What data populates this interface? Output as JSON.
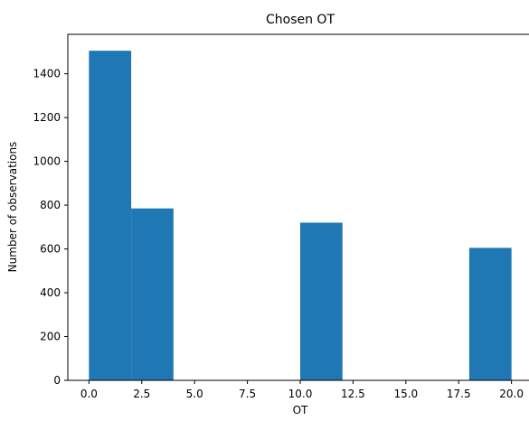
{
  "chart_data": {
    "type": "bar",
    "title": "Chosen OT",
    "xlabel": "OT",
    "ylabel": "Number of observations",
    "xlim": [
      -1,
      21
    ],
    "ylim": [
      0,
      1580
    ],
    "xticks": [
      "0.0",
      "2.5",
      "5.0",
      "7.5",
      "10.0",
      "12.5",
      "15.0",
      "17.5",
      "20.0"
    ],
    "xtick_values": [
      0,
      2.5,
      5,
      7.5,
      10,
      12.5,
      15,
      17.5,
      20
    ],
    "yticks": [
      "0",
      "200",
      "400",
      "600",
      "800",
      "1000",
      "1200",
      "1400"
    ],
    "ytick_values": [
      0,
      200,
      400,
      600,
      800,
      1000,
      1200,
      1400
    ],
    "bins": [
      [
        0,
        2
      ],
      [
        2,
        4
      ],
      [
        4,
        6
      ],
      [
        6,
        8
      ],
      [
        8,
        10
      ],
      [
        10,
        12
      ],
      [
        12,
        14
      ],
      [
        14,
        16
      ],
      [
        16,
        18
      ],
      [
        18,
        20
      ]
    ],
    "values": [
      1505,
      785,
      0,
      0,
      0,
      720,
      0,
      0,
      0,
      605
    ],
    "bar_color": "#1f77b4",
    "grid": false,
    "legend": "none"
  }
}
